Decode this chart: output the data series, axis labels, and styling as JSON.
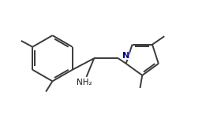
{
  "background": "#ffffff",
  "line_color": "#3a3a3a",
  "line_width": 1.4,
  "text_color": "#1a1a1a",
  "font_size": 7.5,
  "N_color": "#00008B",
  "NH2_label": "NH₂",
  "N_label": "N",
  "xlim": [
    0,
    10
  ],
  "ylim": [
    0,
    5.5
  ]
}
